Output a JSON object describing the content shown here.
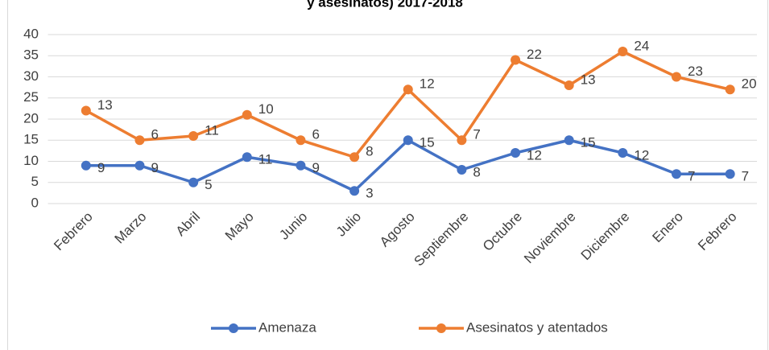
{
  "chart_data": {
    "type": "line",
    "stacked": true,
    "title": "y asesinatos) 2017-2018",
    "categories": [
      "Febrero",
      "Marzo",
      "Abril",
      "Mayo",
      "Junio",
      "Julio",
      "Agosto",
      "Septiembre",
      "Octubre",
      "Noviembre",
      "Diciembre",
      "Enero",
      "Febrero"
    ],
    "series": [
      {
        "name": "Amenaza",
        "color": "#4472c4",
        "values": [
          9,
          9,
          5,
          11,
          9,
          3,
          15,
          8,
          12,
          15,
          12,
          7,
          7
        ]
      },
      {
        "name": "Asesinatos y atentados",
        "color": "#ed7d31",
        "values": [
          13,
          6,
          11,
          10,
          6,
          8,
          12,
          7,
          22,
          13,
          24,
          23,
          20
        ]
      }
    ],
    "ylim": [
      0,
      40
    ],
    "yticks": [
      0,
      5,
      10,
      15,
      20,
      25,
      30,
      35,
      40
    ],
    "grid": true,
    "legend": "bottom"
  }
}
